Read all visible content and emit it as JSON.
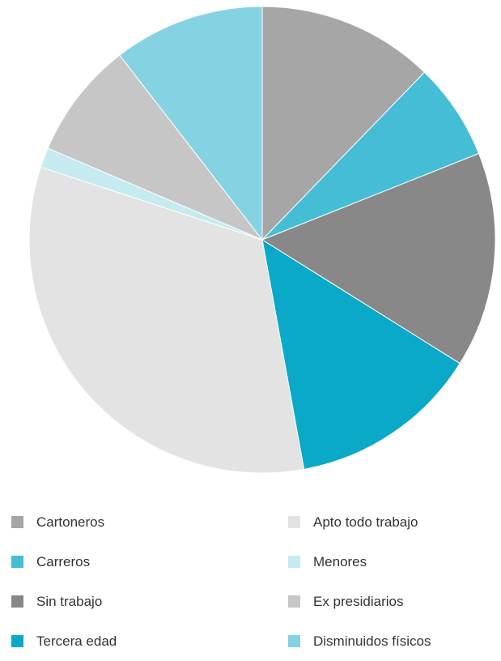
{
  "chart_data": {
    "type": "pie",
    "title": "",
    "start_angle_deg": 0,
    "direction": "clockwise",
    "categories": [
      "Cartoneros",
      "Carreros",
      "Sin trabajo",
      "Tercera edad",
      "Apto todo trabajo",
      "Menores",
      "Ex presidiarios",
      "Disminuidos físicos"
    ],
    "values": [
      12.4,
      6.8,
      15.1,
      13.4,
      33.3,
      1.4,
      8.2,
      10.6
    ],
    "unit": "%",
    "colors": [
      "#a6a6a6",
      "#45bdd5",
      "#888888",
      "#0aa9c8",
      "#e3e3e3",
      "#c5ebf1",
      "#c6c6c6",
      "#85d3e2"
    ],
    "legend_position": "bottom"
  },
  "legend": {
    "left_column": [
      {
        "label": "Cartoneros",
        "color": "#a6a6a6"
      },
      {
        "label": "Carreros",
        "color": "#45bdd5"
      },
      {
        "label": "Sin trabajo",
        "color": "#888888"
      },
      {
        "label": "Tercera edad",
        "color": "#0aa9c8"
      }
    ],
    "right_column": [
      {
        "label": "Apto todo trabajo",
        "color": "#e3e3e3"
      },
      {
        "label": "Menores",
        "color": "#c5ebf1"
      },
      {
        "label": "Ex presidiarios",
        "color": "#c6c6c6"
      },
      {
        "label": "Disminuidos físicos",
        "color": "#85d3e2"
      }
    ]
  }
}
